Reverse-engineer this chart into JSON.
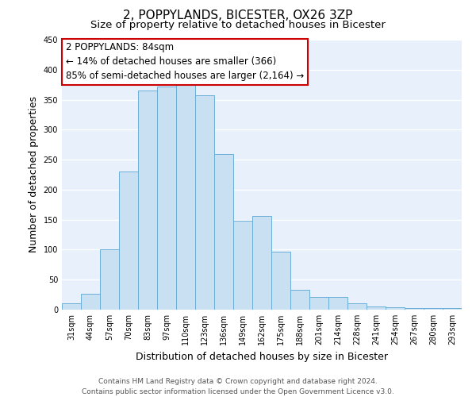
{
  "title": "2, POPPYLANDS, BICESTER, OX26 3ZP",
  "subtitle": "Size of property relative to detached houses in Bicester",
  "xlabel": "Distribution of detached houses by size in Bicester",
  "ylabel": "Number of detached properties",
  "categories": [
    "31sqm",
    "44sqm",
    "57sqm",
    "70sqm",
    "83sqm",
    "97sqm",
    "110sqm",
    "123sqm",
    "136sqm",
    "149sqm",
    "162sqm",
    "175sqm",
    "188sqm",
    "201sqm",
    "214sqm",
    "228sqm",
    "241sqm",
    "254sqm",
    "267sqm",
    "280sqm",
    "293sqm"
  ],
  "values": [
    10,
    26,
    100,
    230,
    365,
    372,
    374,
    357,
    260,
    148,
    156,
    96,
    33,
    21,
    21,
    10,
    5,
    4,
    2,
    2,
    2
  ],
  "bar_color": "#c9dff2",
  "bar_edge_color": "#6aaed6",
  "background_color": "#e8f1fb",
  "annotation_box_color": "#ffffff",
  "annotation_border_color": "#cc0000",
  "annotation_line1": "2 POPPYLANDS: 84sqm",
  "annotation_line2": "← 14% of detached houses are smaller (366)",
  "annotation_line3": "85% of semi-detached houses are larger (2,164) →",
  "ylim": [
    0,
    450
  ],
  "yticks": [
    0,
    50,
    100,
    150,
    200,
    250,
    300,
    350,
    400,
    450
  ],
  "footer_line1": "Contains HM Land Registry data © Crown copyright and database right 2024.",
  "footer_line2": "Contains public sector information licensed under the Open Government Licence v3.0.",
  "title_fontsize": 11,
  "subtitle_fontsize": 9.5,
  "axis_label_fontsize": 9,
  "tick_fontsize": 7,
  "annotation_fontsize": 8.5,
  "footer_fontsize": 6.5
}
